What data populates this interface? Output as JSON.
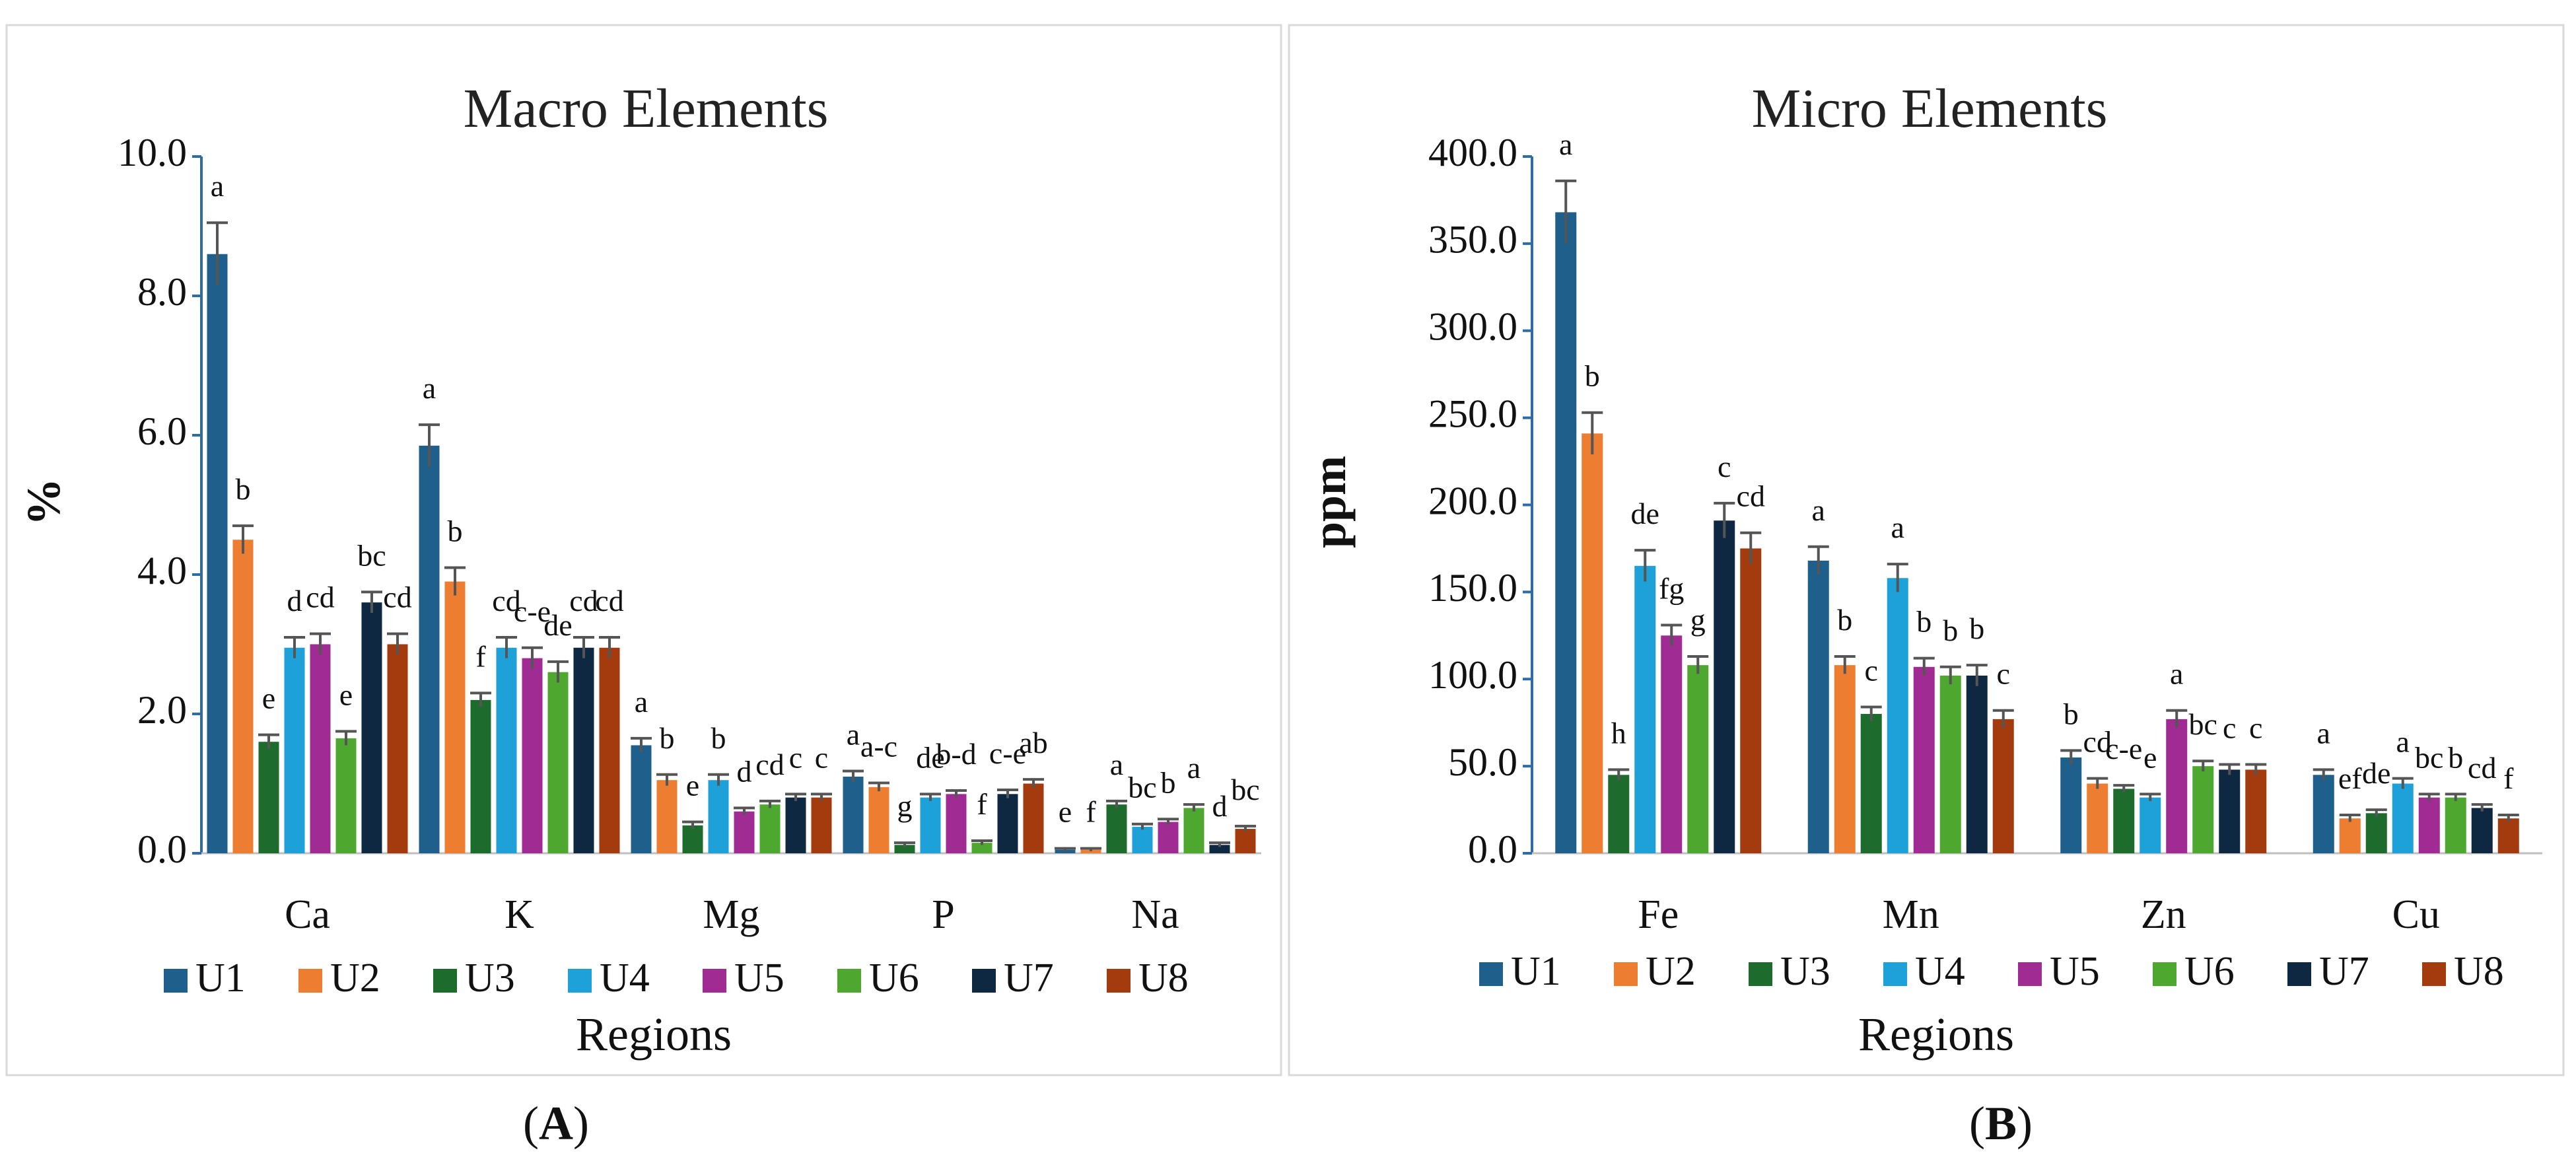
{
  "colors": {
    "U1": "#1f5f8b",
    "U2": "#ed7d31",
    "U3": "#1e6b2e",
    "U4": "#1ea0d8",
    "U5": "#a02b93",
    "U6": "#4ea72e",
    "U7": "#0e2841",
    "U8": "#a33b0f"
  },
  "chart_data": [
    {
      "type": "bar",
      "title": "Macro Elements",
      "ylabel": "%",
      "xlabel": "Regions",
      "panel_label": "A",
      "ylim": [
        0,
        10
      ],
      "yticks": [
        "0.0",
        "2.0",
        "4.0",
        "6.0",
        "8.0",
        "10.0"
      ],
      "ytick_values": [
        0,
        2,
        4,
        6,
        8,
        10
      ],
      "grid": false,
      "legend_position": "bottom",
      "categories": [
        "Ca",
        "K",
        "Mg",
        "P",
        "Na"
      ],
      "series": [
        {
          "name": "U1",
          "values": [
            8.6,
            5.85,
            1.55,
            1.1,
            0.05
          ],
          "errors": [
            0.45,
            0.3,
            0.1,
            0.08,
            0.02
          ],
          "letters": [
            "a",
            "a",
            "a",
            "a",
            "e"
          ]
        },
        {
          "name": "U2",
          "values": [
            4.5,
            3.9,
            1.05,
            0.95,
            0.05
          ],
          "errors": [
            0.2,
            0.2,
            0.08,
            0.06,
            0.02
          ],
          "letters": [
            "b",
            "b",
            "b",
            "a-c",
            "f"
          ]
        },
        {
          "name": "U3",
          "values": [
            1.6,
            2.2,
            0.4,
            0.12,
            0.7
          ],
          "errors": [
            0.1,
            0.1,
            0.05,
            0.03,
            0.05
          ],
          "letters": [
            "e",
            "f",
            "e",
            "g",
            "a"
          ]
        },
        {
          "name": "U4",
          "values": [
            2.95,
            2.95,
            1.05,
            0.8,
            0.38
          ],
          "errors": [
            0.15,
            0.15,
            0.08,
            0.05,
            0.04
          ],
          "letters": [
            "d",
            "cd",
            "b",
            "de",
            "bc"
          ]
        },
        {
          "name": "U5",
          "values": [
            3.0,
            2.8,
            0.6,
            0.85,
            0.45
          ],
          "errors": [
            0.15,
            0.15,
            0.05,
            0.05,
            0.04
          ],
          "letters": [
            "cd",
            "c-e",
            "d",
            "b-d",
            "b"
          ]
        },
        {
          "name": "U6",
          "values": [
            1.65,
            2.6,
            0.7,
            0.15,
            0.65
          ],
          "errors": [
            0.1,
            0.15,
            0.05,
            0.03,
            0.05
          ],
          "letters": [
            "e",
            "de",
            "cd",
            "f",
            "a"
          ]
        },
        {
          "name": "U7",
          "values": [
            3.6,
            2.95,
            0.8,
            0.85,
            0.12
          ],
          "errors": [
            0.15,
            0.15,
            0.05,
            0.06,
            0.03
          ],
          "letters": [
            "bc",
            "cd",
            "c",
            "c-e",
            "d"
          ]
        },
        {
          "name": "U8",
          "values": [
            3.0,
            2.95,
            0.8,
            1.0,
            0.35
          ],
          "errors": [
            0.15,
            0.15,
            0.05,
            0.06,
            0.04
          ],
          "letters": [
            "cd",
            "cd",
            "c",
            "ab",
            "bc"
          ]
        }
      ]
    },
    {
      "type": "bar",
      "title": "Micro Elements",
      "ylabel": "ppm",
      "xlabel": "Regions",
      "panel_label": "B",
      "ylim": [
        0,
        400
      ],
      "yticks": [
        "0.0",
        "50.0",
        "100.0",
        "150.0",
        "200.0",
        "250.0",
        "300.0",
        "350.0",
        "400.0"
      ],
      "ytick_values": [
        0,
        50,
        100,
        150,
        200,
        250,
        300,
        350,
        400
      ],
      "grid": false,
      "legend_position": "bottom",
      "categories": [
        "Fe",
        "Mn",
        "Zn",
        "Cu"
      ],
      "series": [
        {
          "name": "U1",
          "values": [
            368,
            168,
            55,
            45
          ],
          "errors": [
            18,
            8,
            4,
            3
          ],
          "letters": [
            "a",
            "a",
            "b",
            "a"
          ]
        },
        {
          "name": "U2",
          "values": [
            241,
            108,
            40,
            20
          ],
          "errors": [
            12,
            5,
            3,
            2
          ],
          "letters": [
            "b",
            "b",
            "cd",
            "ef"
          ]
        },
        {
          "name": "U3",
          "values": [
            45,
            80,
            37,
            23
          ],
          "errors": [
            3,
            4,
            2,
            2
          ],
          "letters": [
            "h",
            "c",
            "c-e",
            "de"
          ]
        },
        {
          "name": "U4",
          "values": [
            165,
            158,
            32,
            40
          ],
          "errors": [
            9,
            8,
            2,
            3
          ],
          "letters": [
            "de",
            "a",
            "e",
            "a"
          ]
        },
        {
          "name": "U5",
          "values": [
            125,
            107,
            77,
            32
          ],
          "errors": [
            6,
            5,
            5,
            2
          ],
          "letters": [
            "fg",
            "b",
            "a",
            "bc"
          ]
        },
        {
          "name": "U6",
          "values": [
            108,
            102,
            50,
            32
          ],
          "errors": [
            5,
            5,
            3,
            2
          ],
          "letters": [
            "g",
            "b",
            "bc",
            "b"
          ]
        },
        {
          "name": "U7",
          "values": [
            191,
            102,
            48,
            26
          ],
          "errors": [
            10,
            6,
            3,
            2
          ],
          "letters": [
            "c",
            "b",
            "c",
            "cd"
          ]
        },
        {
          "name": "U8",
          "values": [
            175,
            77,
            48,
            20
          ],
          "errors": [
            9,
            5,
            3,
            2
          ],
          "letters": [
            "cd",
            "c",
            "c",
            "f"
          ]
        }
      ]
    }
  ]
}
